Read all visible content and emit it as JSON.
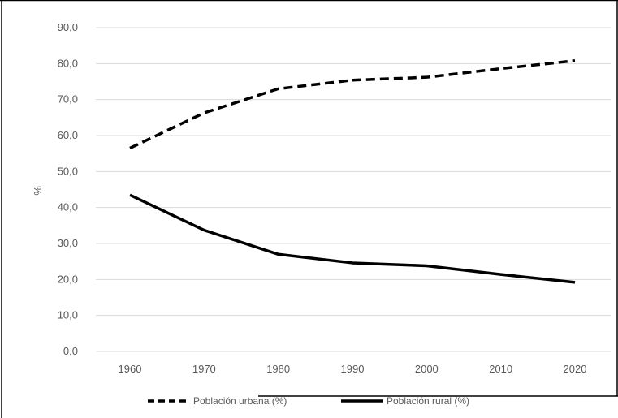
{
  "chart_data": {
    "type": "line",
    "title": "",
    "xlabel": "",
    "ylabel": "%",
    "x": [
      1960,
      1970,
      1980,
      1990,
      2000,
      2010,
      2020
    ],
    "x_tick_labels": [
      "1960",
      "1970",
      "1980",
      "1990",
      "2000",
      "2010",
      "2020"
    ],
    "ylim": [
      0,
      90
    ],
    "y_ticks": [
      0,
      10,
      20,
      30,
      40,
      50,
      60,
      70,
      80,
      90
    ],
    "y_tick_labels": [
      "0,0",
      "10,0",
      "20,0",
      "30,0",
      "40,0",
      "50,0",
      "60,0",
      "70,0",
      "80,0",
      "90,0"
    ],
    "grid": "horizontal",
    "legend_position": "bottom",
    "series": [
      {
        "name": "Población urbana (%)",
        "style": "dashed",
        "color": "#000000",
        "values": [
          56.5,
          66.3,
          73.0,
          75.4,
          76.2,
          78.6,
          80.8
        ]
      },
      {
        "name": "Población rural (%)",
        "style": "solid",
        "color": "#000000",
        "values": [
          43.5,
          33.7,
          27.0,
          24.6,
          23.8,
          21.4,
          19.2
        ]
      }
    ],
    "colors": {
      "grid": "#d9d9d9",
      "axis": "#d9d9d9",
      "text": "#595959"
    }
  }
}
